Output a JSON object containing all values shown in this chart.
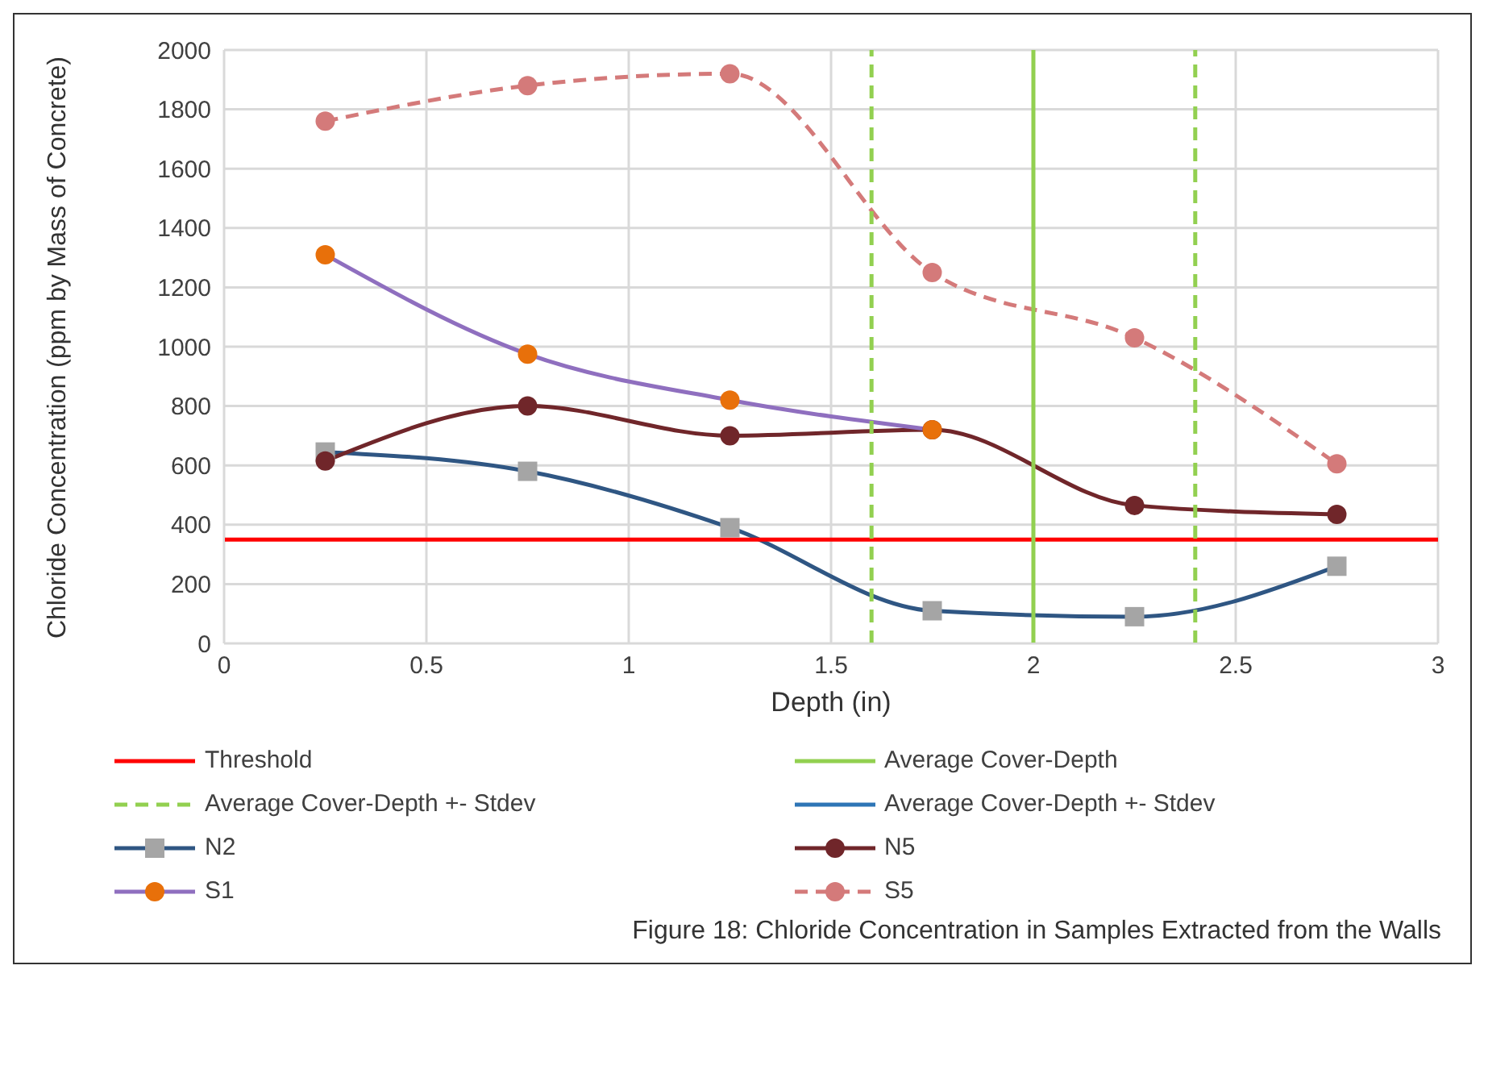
{
  "chart_data": {
    "type": "line",
    "xlabel": "Depth (in)",
    "ylabel": "Chloride Concentration (ppm by Mass of Concrete)",
    "x": [
      0.25,
      0.75,
      1.25,
      1.75,
      2.25,
      2.75
    ],
    "xlim": [
      0,
      3
    ],
    "xticks": [
      0,
      0.5,
      1,
      1.5,
      2,
      2.5,
      3
    ],
    "ylim": [
      0,
      2000
    ],
    "yticks": [
      0,
      200,
      400,
      600,
      800,
      1000,
      1200,
      1400,
      1600,
      1800,
      2000
    ],
    "grid": true,
    "legend": "bottom",
    "ref_lines": [
      {
        "axis": "y",
        "value": 350,
        "label": "Threshold",
        "color": "#ff0000",
        "line_style": "solid"
      },
      {
        "axis": "x",
        "value": 2,
        "label": "Average Cover-Depth",
        "color": "#92d050",
        "line_style": "solid"
      },
      {
        "axis": "x",
        "value": 1.6,
        "label": "Average Cover-Depth +- Stdev",
        "color": "#92d050",
        "line_style": "dashed"
      },
      {
        "axis": "x",
        "value": 2.4,
        "label": null,
        "color": "#92d050",
        "line_style": "dashed"
      }
    ],
    "series": [
      {
        "name": "Average Cover-Depth +- Stdev",
        "color": "#2e75b6",
        "marker": "none",
        "line_style": "solid",
        "values": [
          null,
          null,
          null,
          null,
          null,
          null
        ]
      },
      {
        "name": "N2",
        "color": "#2f5683",
        "marker": "square",
        "line_style": "solid",
        "colors": [
          "#a5a5a5",
          "#a5a5a5",
          "#a5a5a5",
          "#a5a5a5",
          "#a5a5a5",
          "#a5a5a5"
        ],
        "values": [
          645,
          580,
          390,
          110,
          90,
          260
        ]
      },
      {
        "name": "N5",
        "color": "#70262a",
        "marker": "circle",
        "line_style": "solid",
        "colors": [
          "#70262a",
          "#70262a",
          "#70262a",
          "#70262a",
          "#70262a",
          "#70262a"
        ],
        "values": [
          615,
          800,
          700,
          720,
          465,
          435
        ]
      },
      {
        "name": "S1",
        "color": "#8f6fbf",
        "marker": "circle",
        "line_style": "solid",
        "colors": [
          "#e8700a",
          "#e8700a",
          "#e8700a",
          "#e8700a",
          null,
          null
        ],
        "values": [
          1310,
          975,
          820,
          720,
          null,
          null
        ]
      },
      {
        "name": "S5",
        "color": "#d47a7a",
        "marker": "circle",
        "line_style": "dashed",
        "colors": [
          "#d47a7a",
          "#d47a7a",
          "#d47a7a",
          "#d47a7a",
          "#d47a7a",
          "#d47a7a"
        ],
        "values": [
          1760,
          1880,
          1920,
          1250,
          1030,
          605
        ]
      }
    ],
    "annotations": [
      "Figure 18: Chloride Concentration in Samples Extracted from the Walls"
    ]
  }
}
